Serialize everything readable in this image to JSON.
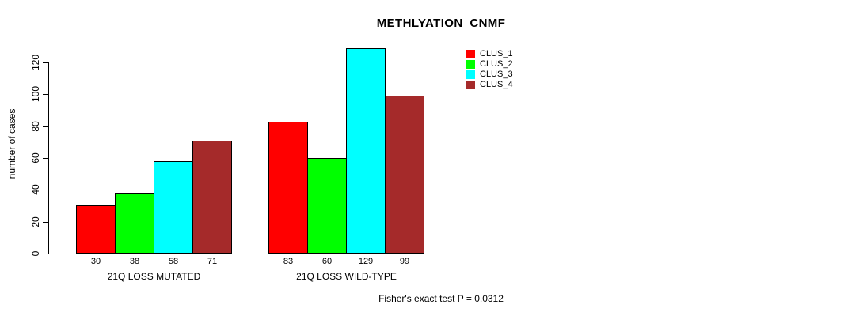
{
  "chart_data": {
    "type": "bar",
    "title": "METHLYATION_CNMF",
    "ylabel": "number of cases",
    "xlabel": "",
    "categories": [
      "21Q LOSS MUTATED",
      "21Q LOSS WILD-TYPE"
    ],
    "series": [
      {
        "name": "CLUS_1",
        "color": "#FF0000",
        "values": [
          30,
          83
        ]
      },
      {
        "name": "CLUS_2",
        "color": "#00FF00",
        "values": [
          38,
          60
        ]
      },
      {
        "name": "CLUS_3",
        "color": "#00FFFF",
        "values": [
          58,
          129
        ]
      },
      {
        "name": "CLUS_4",
        "color": "#A52A2A",
        "values": [
          71,
          99
        ]
      }
    ],
    "value_labels": [
      [
        30,
        38,
        58,
        71
      ],
      [
        83,
        60,
        129,
        99
      ]
    ],
    "ylim": [
      0,
      120
    ],
    "yticks": [
      0,
      20,
      40,
      60,
      80,
      100,
      120
    ],
    "grid": false,
    "legend_position": "top-right",
    "bar_border_color": "#000000",
    "axis_color": "#000000",
    "annotation": "Fisher's exact test P = 0.0312"
  }
}
